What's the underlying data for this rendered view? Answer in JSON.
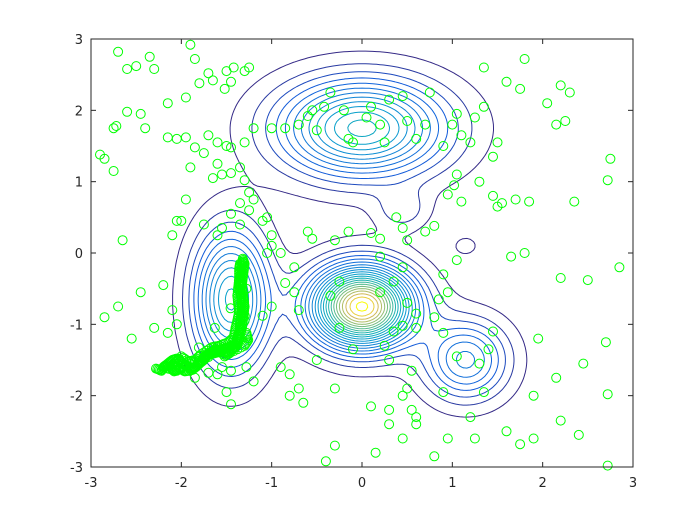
{
  "chart_data": {
    "type": "scatter",
    "title": "",
    "xlabel": "",
    "ylabel": "",
    "xlim": [
      -3,
      3
    ],
    "ylim": [
      -3,
      3
    ],
    "xticks": [
      -3,
      -2,
      -1,
      0,
      1,
      2,
      3
    ],
    "yticks": [
      -3,
      -2,
      -1,
      0,
      1,
      2,
      3
    ],
    "xtick_labels": [
      "-3",
      "-2",
      "-1",
      "0",
      "1",
      "2",
      "3"
    ],
    "ytick_labels": [
      "-3",
      "-2",
      "-1",
      "0",
      "1",
      "2",
      "3"
    ],
    "grid": false,
    "legend": "none",
    "marker_color": "#00ff00",
    "contour": {
      "description_type": "gaussian-mixture-density",
      "colormap": "parula",
      "levels": 22,
      "components": [
        {
          "center": [
            0.0,
            -0.75
          ],
          "weight": 1.0,
          "sigma": 0.38
        },
        {
          "center": [
            0.0,
            1.75
          ],
          "weight": 0.55,
          "sigma": [
            0.62,
            0.46
          ]
        },
        {
          "center": [
            -1.45,
            -0.65
          ],
          "weight": 0.5,
          "sigma": [
            0.28,
            0.65
          ]
        },
        {
          "center": [
            1.15,
            -1.5
          ],
          "weight": 0.32,
          "sigma": [
            0.32,
            0.38
          ]
        },
        {
          "center": [
            0.45,
            0.6
          ],
          "weight": 0.1,
          "sigma": 0.2
        },
        {
          "center": [
            1.15,
            0.1
          ],
          "weight": 0.05,
          "sigma": 0.12
        }
      ]
    },
    "chains": [
      [
        [
          -2.2,
          -1.6
        ],
        [
          -2.15,
          -1.55
        ],
        [
          -2.1,
          -1.5
        ],
        [
          -2.05,
          -1.48
        ],
        [
          -2.0,
          -1.52
        ],
        [
          -1.95,
          -1.58
        ],
        [
          -1.9,
          -1.62
        ],
        [
          -1.85,
          -1.6
        ],
        [
          -1.8,
          -1.55
        ],
        [
          -1.75,
          -1.5
        ],
        [
          -1.72,
          -1.45
        ],
        [
          -1.7,
          -1.4
        ],
        [
          -1.65,
          -1.38
        ],
        [
          -1.6,
          -1.36
        ],
        [
          -1.55,
          -1.35
        ],
        [
          -1.5,
          -1.33
        ],
        [
          -1.45,
          -1.3
        ],
        [
          -1.4,
          -1.28
        ],
        [
          -1.38,
          -1.2
        ],
        [
          -1.36,
          -1.1
        ],
        [
          -1.35,
          -1.0
        ],
        [
          -1.34,
          -0.9
        ],
        [
          -1.33,
          -0.8
        ],
        [
          -1.33,
          -0.7
        ],
        [
          -1.34,
          -0.6
        ],
        [
          -1.35,
          -0.5
        ],
        [
          -1.35,
          -0.4
        ],
        [
          -1.34,
          -0.3
        ],
        [
          -1.33,
          -0.2
        ],
        [
          -1.32,
          -0.12
        ]
      ],
      [
        [
          -2.28,
          -1.62
        ],
        [
          -2.22,
          -1.65
        ],
        [
          -2.18,
          -1.58
        ],
        [
          -2.12,
          -1.6
        ],
        [
          -2.08,
          -1.66
        ],
        [
          -2.02,
          -1.62
        ],
        [
          -1.96,
          -1.66
        ],
        [
          -1.88,
          -1.64
        ],
        [
          -1.82,
          -1.58
        ],
        [
          -1.78,
          -1.52
        ],
        [
          -1.74,
          -1.44
        ],
        [
          -1.68,
          -1.42
        ],
        [
          -1.62,
          -1.4
        ],
        [
          -1.56,
          -1.38
        ],
        [
          -1.5,
          -1.4
        ],
        [
          -1.44,
          -1.36
        ],
        [
          -1.4,
          -1.32
        ],
        [
          -1.37,
          -1.25
        ],
        [
          -1.35,
          -1.15
        ],
        [
          -1.33,
          -1.05
        ],
        [
          -1.32,
          -0.95
        ],
        [
          -1.31,
          -0.85
        ],
        [
          -1.3,
          -0.75
        ],
        [
          -1.31,
          -0.65
        ],
        [
          -1.32,
          -0.55
        ],
        [
          -1.33,
          -0.45
        ],
        [
          -1.32,
          -0.35
        ],
        [
          -1.31,
          -0.25
        ],
        [
          -1.3,
          -0.15
        ],
        [
          -1.32,
          -0.08
        ]
      ],
      [
        [
          -2.1,
          -1.58
        ],
        [
          -2.0,
          -1.45
        ],
        [
          -1.92,
          -1.52
        ],
        [
          -1.85,
          -1.5
        ],
        [
          -1.78,
          -1.42
        ],
        [
          -1.66,
          -1.32
        ],
        [
          -1.58,
          -1.3
        ],
        [
          -1.48,
          -1.25
        ],
        [
          -1.42,
          -1.18
        ],
        [
          -1.4,
          -1.05
        ],
        [
          -1.38,
          -0.95
        ],
        [
          -1.36,
          -0.82
        ],
        [
          -1.37,
          -0.72
        ],
        [
          -1.38,
          -0.6
        ],
        [
          -1.37,
          -0.48
        ],
        [
          -1.36,
          -0.36
        ],
        [
          -1.36,
          -0.22
        ],
        [
          -1.35,
          -0.15
        ],
        [
          -1.28,
          -1.12
        ],
        [
          -1.26,
          -1.22
        ],
        [
          -1.3,
          -1.3
        ],
        [
          -1.46,
          -1.4
        ],
        [
          -1.52,
          -1.45
        ],
        [
          -1.6,
          -1.32
        ],
        [
          -1.7,
          -1.46
        ],
        [
          -1.9,
          -1.55
        ],
        [
          -2.05,
          -1.65
        ],
        [
          -2.15,
          -1.62
        ],
        [
          -1.98,
          -1.6
        ],
        [
          -1.28,
          -0.5
        ]
      ]
    ],
    "scatter": [
      [
        -2.7,
        2.82
      ],
      [
        -2.6,
        2.58
      ],
      [
        -2.5,
        2.62
      ],
      [
        -2.35,
        2.75
      ],
      [
        -2.3,
        2.58
      ],
      [
        -1.9,
        2.92
      ],
      [
        -1.85,
        2.72
      ],
      [
        -1.7,
        2.52
      ],
      [
        -1.8,
        2.38
      ],
      [
        -1.65,
        2.42
      ],
      [
        -1.5,
        2.55
      ],
      [
        -1.52,
        2.3
      ],
      [
        -1.45,
        2.4
      ],
      [
        -1.42,
        2.6
      ],
      [
        -1.3,
        2.55
      ],
      [
        -1.25,
        2.6
      ],
      [
        -1.95,
        2.18
      ],
      [
        -2.15,
        2.1
      ],
      [
        -2.45,
        1.95
      ],
      [
        -2.6,
        1.98
      ],
      [
        -2.75,
        1.75
      ],
      [
        -2.72,
        1.78
      ],
      [
        -2.4,
        1.75
      ],
      [
        -2.15,
        1.62
      ],
      [
        -2.05,
        1.6
      ],
      [
        -1.95,
        1.62
      ],
      [
        -1.85,
        1.48
      ],
      [
        -1.7,
        1.65
      ],
      [
        -1.6,
        1.55
      ],
      [
        -1.5,
        1.5
      ],
      [
        -1.45,
        1.48
      ],
      [
        -1.3,
        1.55
      ],
      [
        -1.2,
        1.75
      ],
      [
        -1.0,
        1.75
      ],
      [
        -0.85,
        1.75
      ],
      [
        -0.7,
        1.8
      ],
      [
        -0.6,
        1.92
      ],
      [
        -0.55,
        2.0
      ],
      [
        -0.5,
        1.72
      ],
      [
        -0.42,
        2.05
      ],
      [
        -0.35,
        2.25
      ],
      [
        -0.2,
        2.0
      ],
      [
        -0.15,
        1.6
      ],
      [
        -0.1,
        1.55
      ],
      [
        0.05,
        1.9
      ],
      [
        0.1,
        2.05
      ],
      [
        0.25,
        1.55
      ],
      [
        0.2,
        1.8
      ],
      [
        0.3,
        2.15
      ],
      [
        0.45,
        2.2
      ],
      [
        0.5,
        1.85
      ],
      [
        0.6,
        1.6
      ],
      [
        0.7,
        1.8
      ],
      [
        0.75,
        2.25
      ],
      [
        0.9,
        1.5
      ],
      [
        1.0,
        1.8
      ],
      [
        1.05,
        1.95
      ],
      [
        1.1,
        1.65
      ],
      [
        1.2,
        1.55
      ],
      [
        1.25,
        1.9
      ],
      [
        1.35,
        2.05
      ],
      [
        1.35,
        2.6
      ],
      [
        1.5,
        1.55
      ],
      [
        1.6,
        2.4
      ],
      [
        1.75,
        2.3
      ],
      [
        1.8,
        2.72
      ],
      [
        1.45,
        1.35
      ],
      [
        1.3,
        1.0
      ],
      [
        1.05,
        1.1
      ],
      [
        1.02,
        0.95
      ],
      [
        0.95,
        0.82
      ],
      [
        1.1,
        0.72
      ],
      [
        1.45,
        0.8
      ],
      [
        1.5,
        0.65
      ],
      [
        1.55,
        0.7
      ],
      [
        1.7,
        0.75
      ],
      [
        1.85,
        0.72
      ],
      [
        2.05,
        2.1
      ],
      [
        2.15,
        1.8
      ],
      [
        2.25,
        1.85
      ],
      [
        2.2,
        2.35
      ],
      [
        2.3,
        2.25
      ],
      [
        2.35,
        0.72
      ],
      [
        2.75,
        1.32
      ],
      [
        2.72,
        1.02
      ],
      [
        2.85,
        -0.2
      ],
      [
        2.5,
        -0.38
      ],
      [
        2.2,
        -0.35
      ],
      [
        1.8,
        0.0
      ],
      [
        1.65,
        -0.05
      ],
      [
        1.05,
        -0.1
      ],
      [
        0.8,
        0.38
      ],
      [
        0.7,
        0.3
      ],
      [
        0.45,
        0.35
      ],
      [
        0.38,
        0.5
      ],
      [
        0.5,
        0.18
      ],
      [
        0.2,
        0.2
      ],
      [
        0.1,
        0.28
      ],
      [
        -0.15,
        0.3
      ],
      [
        -0.3,
        0.18
      ],
      [
        -0.55,
        0.2
      ],
      [
        -0.6,
        0.3
      ],
      [
        -0.75,
        -0.2
      ],
      [
        -0.9,
        0.0
      ],
      [
        -1.0,
        0.25
      ],
      [
        -1.05,
        0.5
      ],
      [
        -1.2,
        0.75
      ],
      [
        -1.25,
        0.85
      ],
      [
        -1.3,
        1.02
      ],
      [
        -1.35,
        1.2
      ],
      [
        -1.45,
        1.12
      ],
      [
        -1.55,
        1.1
      ],
      [
        -1.6,
        1.25
      ],
      [
        -1.65,
        1.05
      ],
      [
        -1.75,
        1.4
      ],
      [
        -1.9,
        1.2
      ],
      [
        -1.95,
        0.75
      ],
      [
        -2.05,
        0.45
      ],
      [
        -2.1,
        0.25
      ],
      [
        -2.0,
        0.45
      ],
      [
        -1.75,
        0.4
      ],
      [
        -1.6,
        0.25
      ],
      [
        -1.55,
        0.35
      ],
      [
        -1.45,
        0.55
      ],
      [
        -1.35,
        0.4
      ],
      [
        -1.35,
        0.7
      ],
      [
        -1.25,
        0.6
      ],
      [
        -1.1,
        0.45
      ],
      [
        -1.0,
        0.1
      ],
      [
        -1.05,
        0.0
      ],
      [
        -2.9,
        1.38
      ],
      [
        -2.85,
        1.32
      ],
      [
        -2.65,
        0.18
      ],
      [
        -2.45,
        -0.55
      ],
      [
        -2.2,
        -0.45
      ],
      [
        -2.1,
        -0.8
      ],
      [
        -2.05,
        -1.0
      ],
      [
        -2.15,
        -1.12
      ],
      [
        -2.3,
        -1.05
      ],
      [
        -2.55,
        -1.2
      ],
      [
        -2.7,
        -0.75
      ],
      [
        -2.85,
        -0.9
      ],
      [
        -2.75,
        1.15
      ],
      [
        -1.3,
        -0.95
      ],
      [
        -1.45,
        -1.65
      ],
      [
        -1.55,
        -1.6
      ],
      [
        -1.6,
        -1.7
      ],
      [
        -1.7,
        -1.68
      ],
      [
        -1.85,
        -1.75
      ],
      [
        -1.5,
        -1.95
      ],
      [
        -1.45,
        -2.12
      ],
      [
        -1.28,
        -1.6
      ],
      [
        -1.2,
        -1.8
      ],
      [
        -0.9,
        -1.6
      ],
      [
        -0.8,
        -1.7
      ],
      [
        -0.8,
        -2.0
      ],
      [
        -0.7,
        -1.9
      ],
      [
        -0.65,
        -2.1
      ],
      [
        -0.5,
        -1.5
      ],
      [
        -0.3,
        -1.9
      ],
      [
        -0.25,
        -1.05
      ],
      [
        -0.1,
        -1.35
      ],
      [
        -0.25,
        -0.4
      ],
      [
        -0.35,
        -0.6
      ],
      [
        -0.7,
        -0.8
      ],
      [
        -0.75,
        -0.55
      ],
      [
        -0.85,
        -0.42
      ],
      [
        -1.0,
        -0.75
      ],
      [
        -1.1,
        -0.88
      ],
      [
        0.2,
        -0.05
      ],
      [
        0.35,
        -0.4
      ],
      [
        0.45,
        -0.2
      ],
      [
        0.5,
        -0.7
      ],
      [
        0.6,
        -0.85
      ],
      [
        0.8,
        -0.9
      ],
      [
        0.9,
        -0.3
      ],
      [
        0.95,
        -0.55
      ],
      [
        0.85,
        -0.65
      ],
      [
        0.45,
        -1.02
      ],
      [
        0.35,
        -1.1
      ],
      [
        0.25,
        -1.3
      ],
      [
        0.3,
        -1.5
      ],
      [
        0.55,
        -1.65
      ],
      [
        0.5,
        -1.9
      ],
      [
        0.45,
        -2.0
      ],
      [
        0.55,
        -2.2
      ],
      [
        0.6,
        -2.3
      ],
      [
        0.3,
        -2.2
      ],
      [
        0.1,
        -2.15
      ],
      [
        0.3,
        -2.4
      ],
      [
        0.45,
        -2.6
      ],
      [
        0.6,
        -2.4
      ],
      [
        0.15,
        -2.8
      ],
      [
        -0.3,
        -2.7
      ],
      [
        -0.4,
        -2.92
      ],
      [
        0.8,
        -2.85
      ],
      [
        0.95,
        -2.6
      ],
      [
        0.9,
        -1.95
      ],
      [
        1.05,
        -1.45
      ],
      [
        1.3,
        -1.55
      ],
      [
        1.4,
        -1.35
      ],
      [
        1.45,
        -1.1
      ],
      [
        1.35,
        -1.95
      ],
      [
        1.2,
        -2.3
      ],
      [
        1.25,
        -2.6
      ],
      [
        1.6,
        -2.5
      ],
      [
        1.75,
        -2.68
      ],
      [
        1.9,
        -2.0
      ],
      [
        1.95,
        -1.2
      ],
      [
        1.9,
        -2.6
      ],
      [
        2.15,
        -1.75
      ],
      [
        2.2,
        -2.35
      ],
      [
        2.4,
        -2.55
      ],
      [
        2.45,
        -1.55
      ],
      [
        2.7,
        -1.25
      ],
      [
        2.72,
        -1.98
      ],
      [
        2.72,
        -2.98
      ],
      [
        0.6,
        -1.05
      ],
      [
        0.9,
        -1.12
      ],
      [
        0.2,
        -0.55
      ]
    ]
  }
}
